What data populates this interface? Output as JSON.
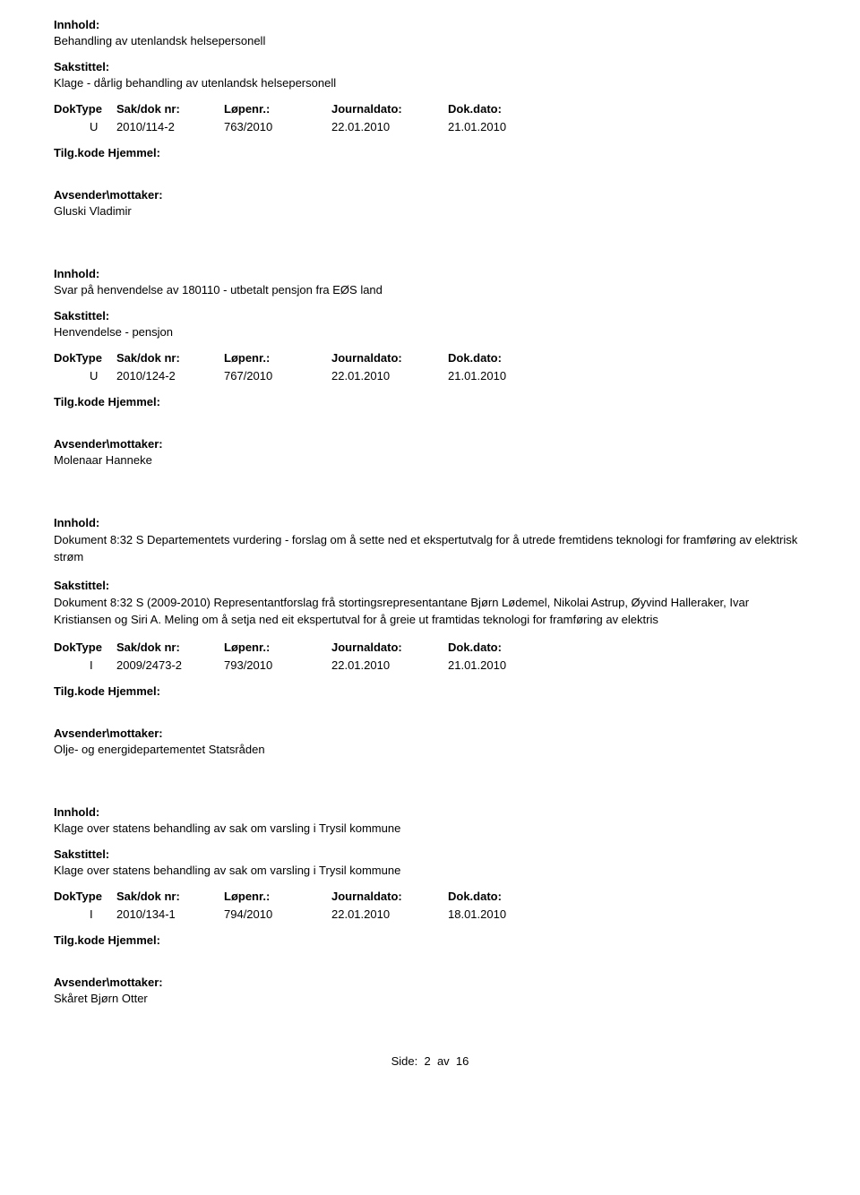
{
  "labels": {
    "innhold": "Innhold:",
    "sakstittel": "Sakstittel:",
    "doktype": "DokType",
    "saknr": "Sak/dok nr:",
    "lopenr": "Løpenr.:",
    "journaldato": "Journaldato:",
    "dokdato": "Dok.dato:",
    "tilgkode": "Tilg.kode",
    "hjemmel": "Hjemmel:",
    "avsender": "Avsender\\mottaker:"
  },
  "records": [
    {
      "innhold": "Behandling av utenlandsk helsepersonell",
      "sakstittel": "Klage - dårlig behandling av utenlandsk helsepersonell",
      "doktype": "U",
      "saknr": "2010/114-2",
      "lopenr": "763/2010",
      "journaldato": "22.01.2010",
      "dokdato": "21.01.2010",
      "avsender": "Gluski Vladimir"
    },
    {
      "innhold": "Svar på henvendelse av 180110 - utbetalt pensjon fra EØS land",
      "sakstittel": "Henvendelse - pensjon",
      "doktype": "U",
      "saknr": "2010/124-2",
      "lopenr": "767/2010",
      "journaldato": "22.01.2010",
      "dokdato": "21.01.2010",
      "avsender": "Molenaar Hanneke"
    },
    {
      "innhold": "Dokument 8:32 S Departementets vurdering - forslag om å sette ned et ekspertutvalg for å utrede fremtidens teknologi for framføring av elektrisk strøm",
      "sakstittel": "Dokument 8:32 S (2009-2010) Representantforslag frå stortingsrepresentantane Bjørn Lødemel, Nikolai Astrup, Øyvind Halleraker, Ivar Kristiansen og Siri A. Meling om å setja ned eit ekspertutval for å greie ut framtidas teknologi for framføring av elektris",
      "doktype": "I",
      "saknr": "2009/2473-2",
      "lopenr": "793/2010",
      "journaldato": "22.01.2010",
      "dokdato": "21.01.2010",
      "avsender": "Olje- og energidepartementet Statsråden"
    },
    {
      "innhold": "Klage over statens behandling av sak om varsling i Trysil kommune",
      "sakstittel": "Klage over statens behandling av sak om varsling i Trysil kommune",
      "doktype": "I",
      "saknr": "2010/134-1",
      "lopenr": "794/2010",
      "journaldato": "22.01.2010",
      "dokdato": "18.01.2010",
      "avsender": "Skåret Bjørn Otter"
    }
  ],
  "footer": {
    "prefix": "Side:",
    "current": "2",
    "sep": "av",
    "total": "16"
  }
}
